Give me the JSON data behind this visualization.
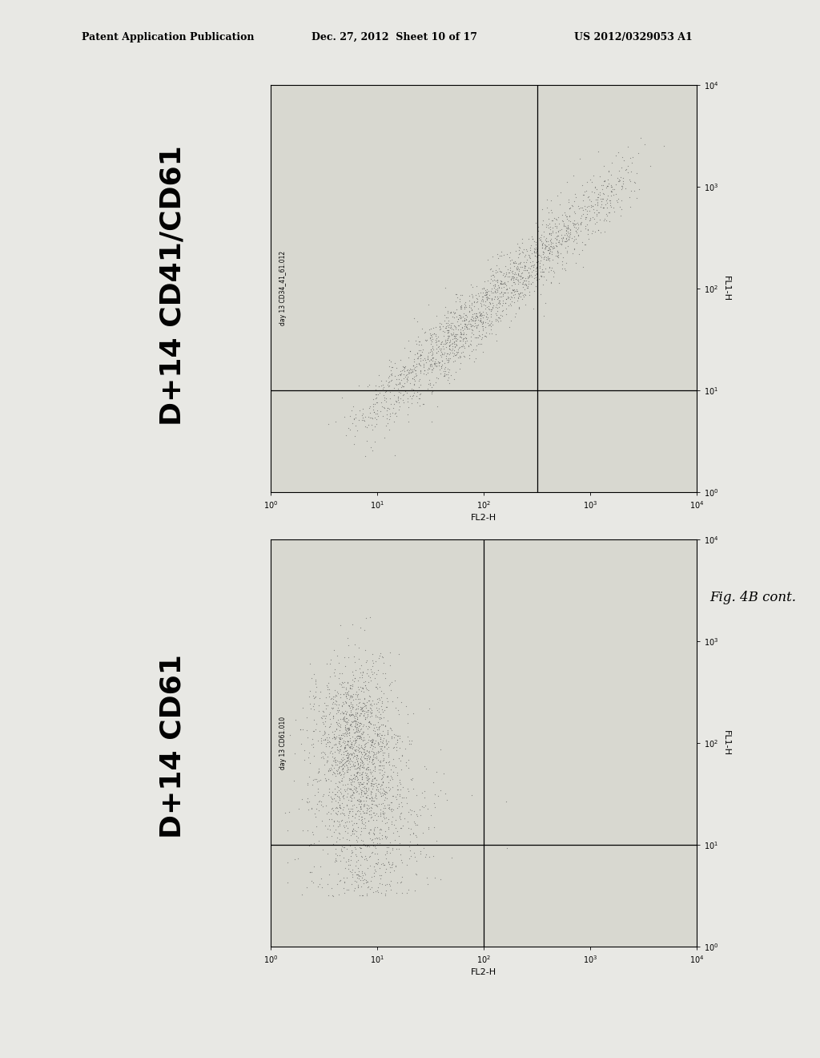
{
  "bg_color": "#e8e8e4",
  "header_text": "Patent Application Publication",
  "header_date": "Dec. 27, 2012  Sheet 10 of 17",
  "header_patent": "US 2012/0329053 A1",
  "fig_label": "Fig. 4B cont.",
  "plot1_title": "D+14 CD41/CD61",
  "plot1_subtitle": "day 13 CD34_41_61.012",
  "plot1_xlabel": "FL2-H",
  "plot1_ylabel": "FL1-H",
  "plot2_title": "D+14 CD61",
  "plot2_subtitle": "day 13 CD61.010",
  "plot2_xlabel": "FL2-H",
  "plot2_ylabel": "FL1-H",
  "tick_labels": [
    "10^0",
    "10^1",
    "10^2",
    "10^3",
    "10^4"
  ]
}
